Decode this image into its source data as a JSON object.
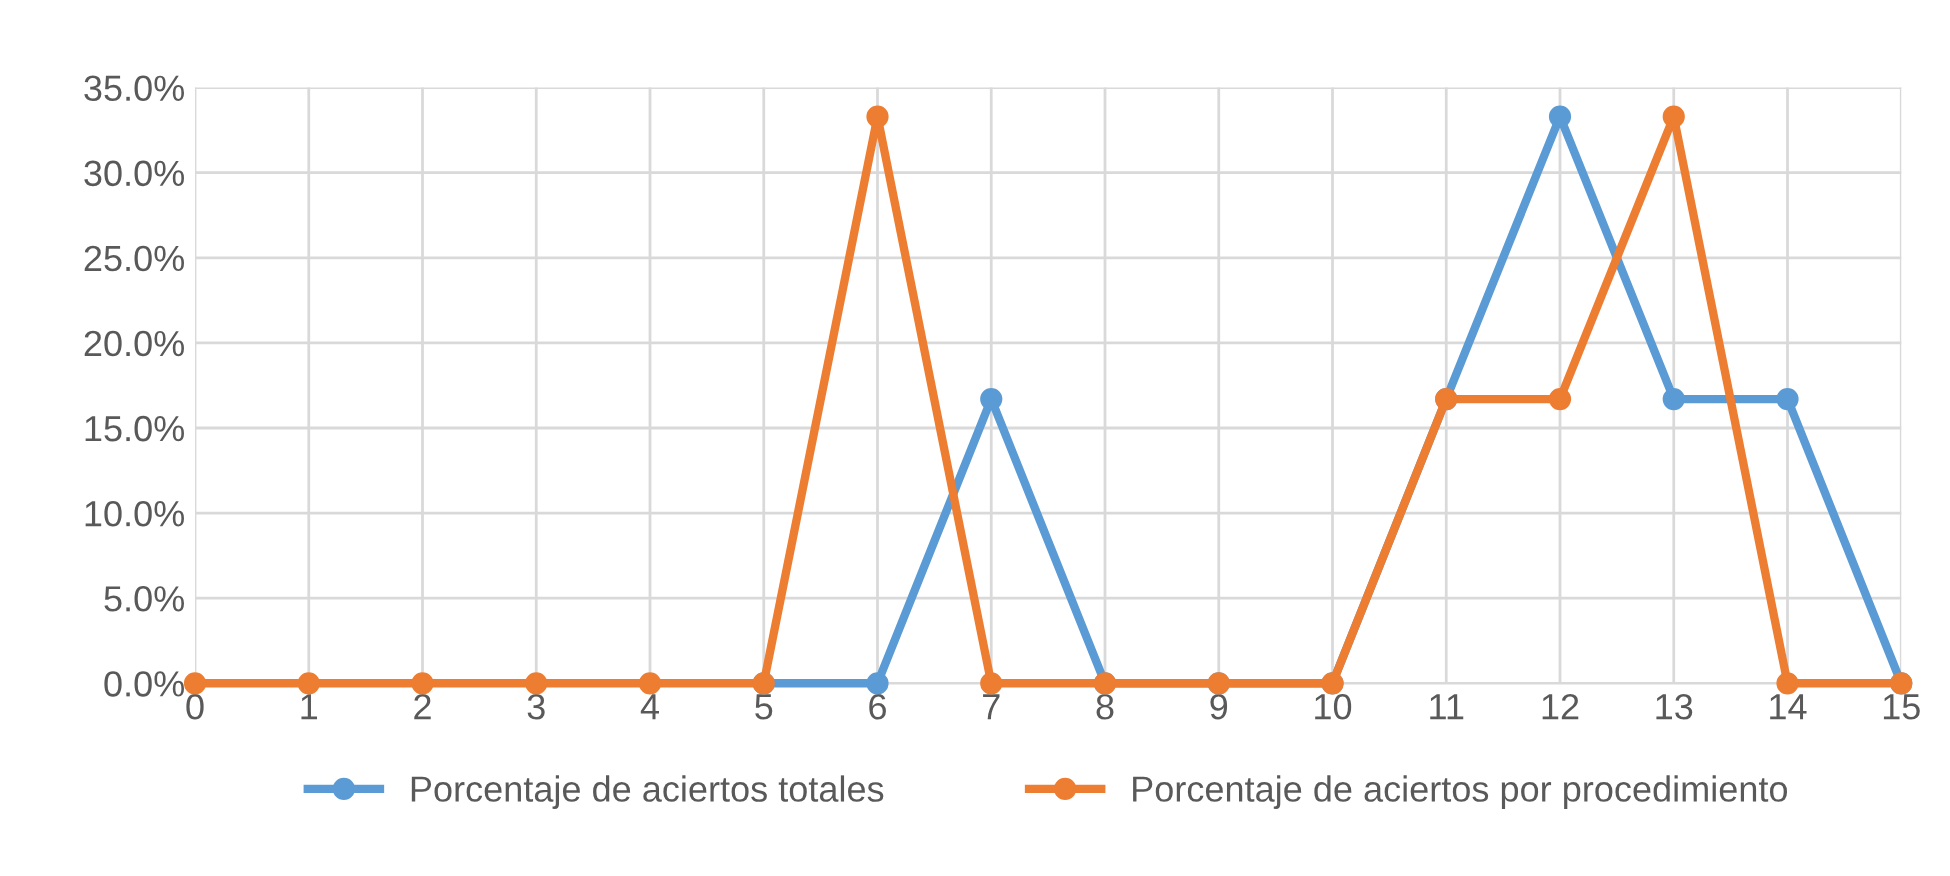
{
  "chart_data": {
    "type": "line",
    "x": [
      0,
      1,
      2,
      3,
      4,
      5,
      6,
      7,
      8,
      9,
      10,
      11,
      12,
      13,
      14,
      15
    ],
    "series": [
      {
        "name": "Porcentaje de aciertos totales",
        "color": "#5b9bd5",
        "values": [
          null,
          null,
          null,
          null,
          null,
          0,
          0,
          16.7,
          0,
          0,
          0,
          16.7,
          33.3,
          16.7,
          16.7,
          0
        ]
      },
      {
        "name": "Porcentaje de aciertos por procedimiento",
        "color": "#ed7d31",
        "values": [
          0,
          0,
          0,
          0,
          0,
          0,
          33.3,
          0,
          0,
          0,
          0,
          16.7,
          16.7,
          33.3,
          0,
          0
        ]
      }
    ],
    "xlim": [
      0,
      15
    ],
    "xticks": [
      0,
      1,
      2,
      3,
      4,
      5,
      6,
      7,
      8,
      9,
      10,
      11,
      12,
      13,
      14,
      15
    ],
    "ylim": [
      0,
      35
    ],
    "yticks": [
      {
        "value": 0,
        "label": "0.0%"
      },
      {
        "value": 5,
        "label": "5.0%"
      },
      {
        "value": 10,
        "label": "10.0%"
      },
      {
        "value": 15,
        "label": "15.0%"
      },
      {
        "value": 20,
        "label": "20.0%"
      },
      {
        "value": 25,
        "label": "25.0%"
      },
      {
        "value": 30,
        "label": "30.0%"
      },
      {
        "value": 35,
        "label": "35.0%"
      }
    ],
    "grid": true,
    "legend": "bottom",
    "marker": "circle",
    "line_style": "solid"
  }
}
